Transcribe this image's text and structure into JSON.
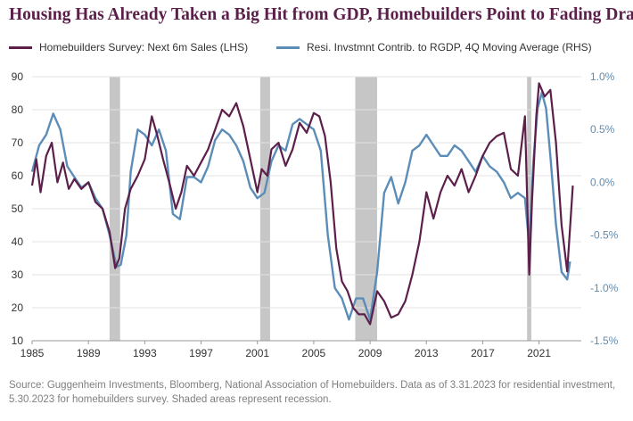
{
  "title": "Housing Has Already Taken a Big Hit from GDP, Homebuilders Point to Fading Drag",
  "source": "Source: Guggenheim Investments, Bloomberg, National Association of Homebuilders. Data as of 3.31.2023 for residential investment, 5.30.2023 for homebuilders survey. Shaded areas represent recession.",
  "chart_data": {
    "type": "line",
    "title": "Housing Has Already Taken a Big Hit from GDP, Homebuilders Point to Fading Drag",
    "legend_position": "top",
    "grid": true,
    "x_range": [
      1985,
      2024
    ],
    "x_ticks": [
      "1985",
      "1989",
      "1993",
      "1997",
      "2001",
      "2005",
      "2009",
      "2013",
      "2017",
      "2021"
    ],
    "x_tick_values": [
      1985,
      1989,
      1993,
      1997,
      2001,
      2005,
      2009,
      2013,
      2017,
      2021
    ],
    "y_left": {
      "range": [
        10,
        90
      ],
      "ticks": [
        "90",
        "80",
        "70",
        "60",
        "50",
        "40",
        "30",
        "20",
        "10"
      ],
      "tick_values": [
        90,
        80,
        70,
        60,
        50,
        40,
        30,
        20,
        10
      ]
    },
    "y_right": {
      "range": [
        -1.5,
        1.0
      ],
      "ticks": [
        "1.0%",
        "0.5%",
        "0.0%",
        "-0.5%",
        "-1.0%",
        "-1.5%"
      ],
      "tick_values": [
        1.0,
        0.5,
        0.0,
        -0.5,
        -1.0,
        -1.5
      ]
    },
    "recessions": [
      [
        1990.5,
        1991.25
      ],
      [
        2001.2,
        2001.9
      ],
      [
        2007.95,
        2009.5
      ],
      [
        2020.15,
        2020.45
      ]
    ],
    "series": [
      {
        "name": "Homebuilders Survey: Next 6m Sales (LHS)",
        "axis": "left",
        "color": "#5b1f4a",
        "x": [
          1985.0,
          1985.3,
          1985.6,
          1986.0,
          1986.4,
          1986.8,
          1987.2,
          1987.6,
          1988.0,
          1988.5,
          1989.0,
          1989.5,
          1990.0,
          1990.5,
          1990.9,
          1991.2,
          1991.6,
          1992.0,
          1992.5,
          1993.0,
          1993.5,
          1993.9,
          1994.3,
          1994.8,
          1995.2,
          1995.6,
          1996.0,
          1996.5,
          1997.0,
          1997.5,
          1998.0,
          1998.5,
          1999.0,
          1999.5,
          2000.0,
          2000.5,
          2001.0,
          2001.3,
          2001.7,
          2002.0,
          2002.5,
          2003.0,
          2003.5,
          2004.0,
          2004.5,
          2005.0,
          2005.4,
          2005.8,
          2006.2,
          2006.6,
          2007.0,
          2007.4,
          2007.8,
          2008.2,
          2008.6,
          2009.0,
          2009.5,
          2010.0,
          2010.5,
          2011.0,
          2011.5,
          2012.0,
          2012.5,
          2013.0,
          2013.5,
          2014.0,
          2014.5,
          2015.0,
          2015.5,
          2016.0,
          2016.5,
          2017.0,
          2017.5,
          2018.0,
          2018.5,
          2019.0,
          2019.5,
          2020.0,
          2020.3,
          2020.5,
          2020.8,
          2021.0,
          2021.4,
          2021.8,
          2022.2,
          2022.6,
          2023.0,
          2023.4
        ],
        "values": [
          57,
          65,
          55,
          66,
          70,
          58,
          64,
          56,
          59,
          56,
          58,
          52,
          50,
          43,
          32,
          35,
          50,
          56,
          60,
          65,
          78,
          72,
          65,
          57,
          50,
          55,
          63,
          60,
          64,
          68,
          74,
          80,
          78,
          82,
          75,
          65,
          55,
          62,
          60,
          68,
          70,
          63,
          68,
          76,
          73,
          79,
          78,
          72,
          58,
          38,
          28,
          25,
          20,
          18,
          18,
          15,
          25,
          22,
          17,
          18,
          22,
          30,
          40,
          55,
          47,
          55,
          60,
          57,
          62,
          55,
          60,
          66,
          70,
          72,
          73,
          62,
          60,
          78,
          30,
          52,
          78,
          88,
          84,
          86,
          70,
          45,
          31,
          57
        ]
      },
      {
        "name": "Resi. Invstmnt Contrib. to RGDP, 4Q Moving Average (RHS)",
        "axis": "right",
        "color": "#5b8db8",
        "x": [
          1985.0,
          1985.5,
          1986.0,
          1986.5,
          1987.0,
          1987.5,
          1988.0,
          1988.5,
          1989.0,
          1989.5,
          1990.0,
          1990.5,
          1991.0,
          1991.3,
          1991.7,
          1992.0,
          1992.5,
          1993.0,
          1993.5,
          1994.0,
          1994.5,
          1995.0,
          1995.5,
          1996.0,
          1996.5,
          1997.0,
          1997.5,
          1998.0,
          1998.5,
          1999.0,
          1999.5,
          2000.0,
          2000.5,
          2001.0,
          2001.5,
          2002.0,
          2002.5,
          2003.0,
          2003.5,
          2004.0,
          2004.5,
          2005.0,
          2005.5,
          2006.0,
          2006.5,
          2007.0,
          2007.5,
          2008.0,
          2008.5,
          2009.0,
          2009.5,
          2010.0,
          2010.5,
          2011.0,
          2011.5,
          2012.0,
          2012.5,
          2013.0,
          2013.5,
          2014.0,
          2014.5,
          2015.0,
          2015.5,
          2016.0,
          2016.5,
          2017.0,
          2017.5,
          2018.0,
          2018.5,
          2019.0,
          2019.5,
          2020.0,
          2020.3,
          2020.6,
          2020.9,
          2021.2,
          2021.5,
          2021.8,
          2022.2,
          2022.6,
          2023.0,
          2023.2
        ],
        "values": [
          0.1,
          0.35,
          0.45,
          0.65,
          0.5,
          0.15,
          0.05,
          -0.05,
          0.0,
          -0.15,
          -0.25,
          -0.5,
          -0.8,
          -0.78,
          -0.5,
          0.1,
          0.5,
          0.45,
          0.35,
          0.5,
          0.3,
          -0.3,
          -0.35,
          0.05,
          0.05,
          0.0,
          0.15,
          0.4,
          0.5,
          0.45,
          0.35,
          0.2,
          -0.05,
          -0.15,
          -0.1,
          0.2,
          0.35,
          0.3,
          0.55,
          0.6,
          0.55,
          0.5,
          0.3,
          -0.5,
          -1.0,
          -1.1,
          -1.3,
          -1.1,
          -1.1,
          -1.3,
          -0.85,
          -0.1,
          0.05,
          -0.2,
          0.0,
          0.3,
          0.35,
          0.45,
          0.35,
          0.25,
          0.25,
          0.35,
          0.3,
          0.2,
          0.1,
          0.25,
          0.15,
          0.1,
          0.0,
          -0.15,
          -0.1,
          -0.15,
          -0.6,
          0.2,
          0.7,
          0.85,
          0.7,
          0.25,
          -0.4,
          -0.85,
          -0.92,
          -0.75
        ]
      }
    ]
  }
}
